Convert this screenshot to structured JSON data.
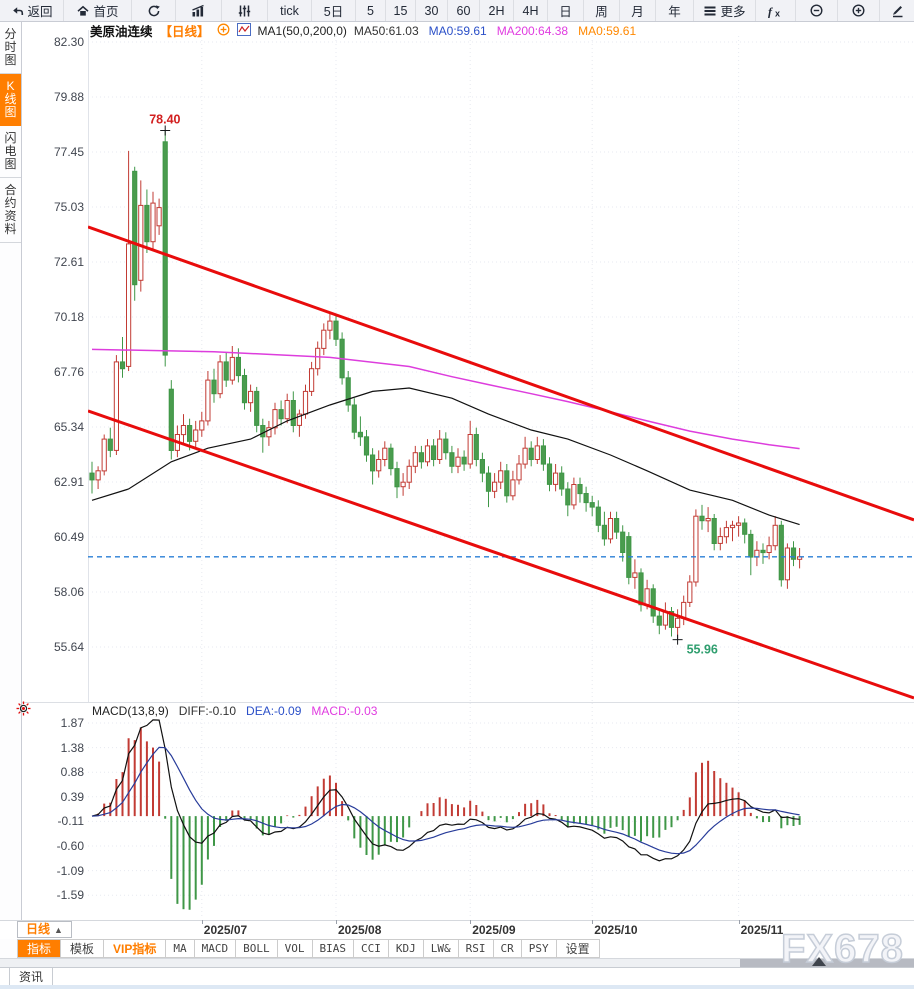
{
  "toolbar": {
    "items": [
      {
        "name": "back-button",
        "icon": "back-arrow-icon",
        "label": "返回"
      },
      {
        "name": "home-button",
        "icon": "home-icon",
        "label": "首页"
      },
      {
        "name": "refresh-button",
        "icon": "refresh-icon",
        "label": ""
      },
      {
        "name": "bar-chart-button",
        "icon": "bar-chart-icon",
        "label": ""
      },
      {
        "name": "candlestick-button",
        "icon": "sliders-icon",
        "label": ""
      },
      {
        "name": "interval-tick-button",
        "label": "tick"
      },
      {
        "name": "interval-5d-button",
        "label": "5日"
      },
      {
        "name": "interval-5-button",
        "label": "5"
      },
      {
        "name": "interval-15-button",
        "label": "15"
      },
      {
        "name": "interval-30-button",
        "label": "30"
      },
      {
        "name": "interval-60-button",
        "label": "60"
      },
      {
        "name": "interval-2h-button",
        "label": "2H"
      },
      {
        "name": "interval-4h-button",
        "label": "4H"
      },
      {
        "name": "interval-day-button",
        "label": "日"
      },
      {
        "name": "interval-week-button",
        "label": "周"
      },
      {
        "name": "interval-month-button",
        "label": "月"
      },
      {
        "name": "interval-year-button",
        "label": "年"
      },
      {
        "name": "more-button",
        "icon": "menu-icon",
        "label": "更多"
      },
      {
        "name": "indicator-fx-button",
        "icon": "fx-icon",
        "label": ""
      },
      {
        "name": "zoom-out-button",
        "icon": "zoom-out-icon",
        "label": ""
      },
      {
        "name": "zoom-in-button",
        "icon": "zoom-in-icon",
        "label": ""
      },
      {
        "name": "draw-button",
        "icon": "pencil-icon",
        "label": ""
      }
    ]
  },
  "sidebar": {
    "tabs": [
      {
        "name": "tab-time-chart",
        "label": "分时图",
        "active": false
      },
      {
        "name": "tab-kline-chart",
        "label": "K线图",
        "active": true
      },
      {
        "name": "tab-flash-chart",
        "label": "闪电图",
        "active": false
      },
      {
        "name": "tab-contract-info",
        "label": "合约资料",
        "active": false
      }
    ]
  },
  "chart_header": {
    "symbol": "美原油连续",
    "period_tag": "【日线】",
    "formula": "MA1(50,0,200,0)",
    "ma_values": [
      {
        "label": "MA50:61.03",
        "color": "#333333"
      },
      {
        "label": "MA0:59.61",
        "color": "#2b50c8"
      },
      {
        "label": "MA200:64.38",
        "color": "#e03ce0"
      },
      {
        "label": "MA0:59.61",
        "color": "#ff8800"
      }
    ]
  },
  "macd_header": {
    "formula": "MACD(13,8,9)",
    "values": [
      {
        "label": "DIFF:-0.10",
        "color": "#333333"
      },
      {
        "label": "DEA:-0.09",
        "color": "#2b50c8"
      },
      {
        "label": "MACD:-0.03",
        "color": "#e03ce0"
      }
    ]
  },
  "chart_data": {
    "type": "candlestick+macd",
    "symbol": "美原油连续",
    "period": "日线",
    "y_axis_labels": [
      "82.30",
      "79.88",
      "77.45",
      "75.03",
      "72.61",
      "70.18",
      "67.76",
      "65.34",
      "62.91",
      "60.49",
      "58.06",
      "55.64"
    ],
    "macd_axis_labels": [
      "1.87",
      "1.38",
      "0.88",
      "0.39",
      "-0.11",
      "-0.60",
      "-1.09",
      "-1.59"
    ],
    "x_axis_labels": [
      {
        "label": "2025/07",
        "index": 18
      },
      {
        "label": "2025/08",
        "index": 40
      },
      {
        "label": "2025/09",
        "index": 62
      },
      {
        "label": "2025/10",
        "index": 82
      },
      {
        "label": "2025/11",
        "index": 106
      }
    ],
    "price_line": 59.61,
    "annotations": {
      "high": {
        "index": 12,
        "price": 78.4,
        "label": "78.40"
      },
      "low": {
        "index": 96,
        "price": 55.96,
        "label": "55.96"
      }
    },
    "trend_lines": [
      {
        "name": "upper",
        "price_left": 74.15,
        "price_right": 61.24
      },
      {
        "name": "lower",
        "price_left": 66.04,
        "price_right": 53.39
      }
    ],
    "ma50_points": [
      [
        0,
        62.1
      ],
      [
        6,
        62.6
      ],
      [
        13,
        63.8
      ],
      [
        19,
        64.4
      ],
      [
        26,
        64.8
      ],
      [
        32,
        65.6
      ],
      [
        39,
        66.3
      ],
      [
        46,
        66.9
      ],
      [
        52,
        67.05
      ],
      [
        59,
        66.6
      ],
      [
        65,
        65.9
      ],
      [
        72,
        65.2
      ],
      [
        78,
        64.8
      ],
      [
        85,
        64.1
      ],
      [
        91,
        63.4
      ],
      [
        98,
        62.55
      ],
      [
        105,
        62.1
      ],
      [
        111,
        61.45
      ],
      [
        116,
        61.03
      ]
    ],
    "ma200_points": [
      [
        0,
        68.75
      ],
      [
        20,
        68.65
      ],
      [
        39,
        68.4
      ],
      [
        52,
        68.0
      ],
      [
        59,
        67.55
      ],
      [
        65,
        67.2
      ],
      [
        72,
        66.8
      ],
      [
        78,
        66.45
      ],
      [
        85,
        66.0
      ],
      [
        91,
        65.6
      ],
      [
        98,
        65.15
      ],
      [
        105,
        64.8
      ],
      [
        111,
        64.55
      ],
      [
        116,
        64.38
      ]
    ],
    "macd_params": {
      "fast": 8,
      "slow": 13,
      "signal": 9
    },
    "candles": [
      [
        63.3,
        63.8,
        62.4,
        63.0
      ],
      [
        63.0,
        63.6,
        62.6,
        63.4
      ],
      [
        63.4,
        65.0,
        63.2,
        64.8
      ],
      [
        64.8,
        65.3,
        64.0,
        64.3
      ],
      [
        64.3,
        68.5,
        64.1,
        68.2
      ],
      [
        68.2,
        69.3,
        67.5,
        67.9
      ],
      [
        68.0,
        77.5,
        67.8,
        73.4
      ],
      [
        76.6,
        76.8,
        70.9,
        71.6
      ],
      [
        71.8,
        76.2,
        71.3,
        75.1
      ],
      [
        75.1,
        75.8,
        73.0,
        73.5
      ],
      [
        73.5,
        75.7,
        73.2,
        75.2
      ],
      [
        74.2,
        75.4,
        73.8,
        75.0
      ],
      [
        77.9,
        78.4,
        68.0,
        68.5
      ],
      [
        67.0,
        67.4,
        63.9,
        64.3
      ],
      [
        64.3,
        65.4,
        64.0,
        65.0
      ],
      [
        65.0,
        65.9,
        64.6,
        65.4
      ],
      [
        65.4,
        65.7,
        64.3,
        64.7
      ],
      [
        64.7,
        65.6,
        64.4,
        65.2
      ],
      [
        65.2,
        66.0,
        64.9,
        65.6
      ],
      [
        65.6,
        67.8,
        65.4,
        67.4
      ],
      [
        67.4,
        67.9,
        66.4,
        66.8
      ],
      [
        66.8,
        68.5,
        66.6,
        68.2
      ],
      [
        68.2,
        68.6,
        67.1,
        67.4
      ],
      [
        67.4,
        68.9,
        67.2,
        68.4
      ],
      [
        68.4,
        68.8,
        67.3,
        67.6
      ],
      [
        67.6,
        67.9,
        66.1,
        66.4
      ],
      [
        66.4,
        67.2,
        66.0,
        66.9
      ],
      [
        66.9,
        67.1,
        65.1,
        65.4
      ],
      [
        65.4,
        65.7,
        64.2,
        64.9
      ],
      [
        64.9,
        65.6,
        64.5,
        65.3
      ],
      [
        65.3,
        66.4,
        65.0,
        66.1
      ],
      [
        66.1,
        66.5,
        65.4,
        65.7
      ],
      [
        65.7,
        66.8,
        65.5,
        66.5
      ],
      [
        66.5,
        66.9,
        65.1,
        65.4
      ],
      [
        65.4,
        66.1,
        64.9,
        65.9
      ],
      [
        65.9,
        67.2,
        65.7,
        66.9
      ],
      [
        66.9,
        68.2,
        66.7,
        67.9
      ],
      [
        67.9,
        69.1,
        67.6,
        68.8
      ],
      [
        68.8,
        69.9,
        68.5,
        69.6
      ],
      [
        69.6,
        70.4,
        69.2,
        70.0
      ],
      [
        70.0,
        70.3,
        68.9,
        69.2
      ],
      [
        69.2,
        69.5,
        67.2,
        67.5
      ],
      [
        67.5,
        67.8,
        66.0,
        66.3
      ],
      [
        66.3,
        66.6,
        64.8,
        65.1
      ],
      [
        65.1,
        65.8,
        64.5,
        64.9
      ],
      [
        64.9,
        65.2,
        63.8,
        64.1
      ],
      [
        64.1,
        64.4,
        62.8,
        63.4
      ],
      [
        63.4,
        64.3,
        63.1,
        63.9
      ],
      [
        63.9,
        64.7,
        63.6,
        64.4
      ],
      [
        64.4,
        64.6,
        63.2,
        63.5
      ],
      [
        63.5,
        63.8,
        62.2,
        62.7
      ],
      [
        62.7,
        63.3,
        62.3,
        62.9
      ],
      [
        62.9,
        63.9,
        62.6,
        63.6
      ],
      [
        63.6,
        64.5,
        63.3,
        64.2
      ],
      [
        64.2,
        64.5,
        63.5,
        63.8
      ],
      [
        63.8,
        64.8,
        63.6,
        64.5
      ],
      [
        64.5,
        64.8,
        63.6,
        63.9
      ],
      [
        63.9,
        65.2,
        63.7,
        64.8
      ],
      [
        64.8,
        65.1,
        63.9,
        64.2
      ],
      [
        64.2,
        64.5,
        63.3,
        63.6
      ],
      [
        63.6,
        64.4,
        63.3,
        64.0
      ],
      [
        64.0,
        64.3,
        63.4,
        63.7
      ],
      [
        63.7,
        65.6,
        63.5,
        65.0
      ],
      [
        65.0,
        65.3,
        63.6,
        63.9
      ],
      [
        63.9,
        64.2,
        62.9,
        63.3
      ],
      [
        63.3,
        63.6,
        61.8,
        62.5
      ],
      [
        62.5,
        63.3,
        62.2,
        62.9
      ],
      [
        62.9,
        63.8,
        62.6,
        63.4
      ],
      [
        63.4,
        63.7,
        62.0,
        62.3
      ],
      [
        62.3,
        63.4,
        62.1,
        63.0
      ],
      [
        63.0,
        64.1,
        62.8,
        63.7
      ],
      [
        63.7,
        64.9,
        63.5,
        64.4
      ],
      [
        64.4,
        64.7,
        63.6,
        63.9
      ],
      [
        63.9,
        64.9,
        63.7,
        64.5
      ],
      [
        64.5,
        64.8,
        63.4,
        63.7
      ],
      [
        63.7,
        64.0,
        62.5,
        62.8
      ],
      [
        62.8,
        63.7,
        62.5,
        63.3
      ],
      [
        63.3,
        63.6,
        62.3,
        62.6
      ],
      [
        62.6,
        62.9,
        61.4,
        61.9
      ],
      [
        61.9,
        63.1,
        61.7,
        62.8
      ],
      [
        62.8,
        63.1,
        62.0,
        62.4
      ],
      [
        62.4,
        62.7,
        61.6,
        62.0
      ],
      [
        62.0,
        62.3,
        61.4,
        61.8
      ],
      [
        61.8,
        62.1,
        60.7,
        61.0
      ],
      [
        61.0,
        61.6,
        60.1,
        60.4
      ],
      [
        60.4,
        61.6,
        60.2,
        61.3
      ],
      [
        61.3,
        61.6,
        60.4,
        60.7
      ],
      [
        60.7,
        61.0,
        59.4,
        59.8
      ],
      [
        60.5,
        60.7,
        58.4,
        58.7
      ],
      [
        58.7,
        59.5,
        58.2,
        58.9
      ],
      [
        58.9,
        59.1,
        57.2,
        57.5
      ],
      [
        57.5,
        58.6,
        57.3,
        58.2
      ],
      [
        58.2,
        58.4,
        56.7,
        57.0
      ],
      [
        57.0,
        57.3,
        56.2,
        56.6
      ],
      [
        56.6,
        57.6,
        56.4,
        57.2
      ],
      [
        57.2,
        57.4,
        56.1,
        56.5
      ],
      [
        56.5,
        57.3,
        55.96,
        56.9
      ],
      [
        56.9,
        57.9,
        56.6,
        57.6
      ],
      [
        57.6,
        58.8,
        57.4,
        58.5
      ],
      [
        58.5,
        61.7,
        58.3,
        61.4
      ],
      [
        61.4,
        61.9,
        60.8,
        61.2
      ],
      [
        61.2,
        61.8,
        60.7,
        61.3
      ],
      [
        61.3,
        61.5,
        59.9,
        60.2
      ],
      [
        60.2,
        60.9,
        59.9,
        60.5
      ],
      [
        60.5,
        61.2,
        60.2,
        60.9
      ],
      [
        60.9,
        61.2,
        60.3,
        61.0
      ],
      [
        61.0,
        61.4,
        60.5,
        61.1
      ],
      [
        61.1,
        61.3,
        60.2,
        60.6
      ],
      [
        60.6,
        60.8,
        58.8,
        59.6
      ],
      [
        59.6,
        60.3,
        59.2,
        59.9
      ],
      [
        59.9,
        60.2,
        59.3,
        59.8
      ],
      [
        59.8,
        60.5,
        59.5,
        60.1
      ],
      [
        60.1,
        61.4,
        59.9,
        61.0
      ],
      [
        61.0,
        61.2,
        58.3,
        58.6
      ],
      [
        58.6,
        60.2,
        58.2,
        60.0
      ],
      [
        60.0,
        60.3,
        59.2,
        59.5
      ],
      [
        59.5,
        60.0,
        59.1,
        59.61
      ]
    ],
    "colors": {
      "up": "#c23b34",
      "down": "#3f9747",
      "down_fill": "#4a9c4e",
      "ma50": "#111111",
      "ma200": "#dd3ddd",
      "trend": "#e80c0c",
      "price_line": "#2a7fd6",
      "diff": "#111111",
      "dea": "#283c9a",
      "high_label": "#d22020",
      "low_label": "#2f9e6e",
      "accent": "#ff7e00"
    }
  },
  "bottom": {
    "period_label": "日线",
    "period_arrow": "▲",
    "tabs": [
      {
        "name": "tab-indicator",
        "label": "指标",
        "active": true
      },
      {
        "name": "tab-template",
        "label": "模板"
      },
      {
        "name": "tab-vip-indicator",
        "label": "VIP指标",
        "vip": true
      },
      {
        "name": "tab-ma",
        "label": "MA",
        "en": true
      },
      {
        "name": "tab-macd",
        "label": "MACD",
        "en": true
      },
      {
        "name": "tab-boll",
        "label": "BOLL",
        "en": true
      },
      {
        "name": "tab-vol",
        "label": "VOL",
        "en": true
      },
      {
        "name": "tab-bias",
        "label": "BIAS",
        "en": true
      },
      {
        "name": "tab-cci",
        "label": "CCI",
        "en": true
      },
      {
        "name": "tab-kdj",
        "label": "KDJ",
        "en": true
      },
      {
        "name": "tab-lw",
        "label": "LW&",
        "en": true
      },
      {
        "name": "tab-rsi",
        "label": "RSI",
        "en": true
      },
      {
        "name": "tab-cr",
        "label": "CR",
        "en": true
      },
      {
        "name": "tab-psy",
        "label": "PSY",
        "en": true
      },
      {
        "name": "tab-settings",
        "label": "设置"
      }
    ],
    "watermark": "FX678"
  },
  "status_bar": {
    "tab": "资讯"
  }
}
